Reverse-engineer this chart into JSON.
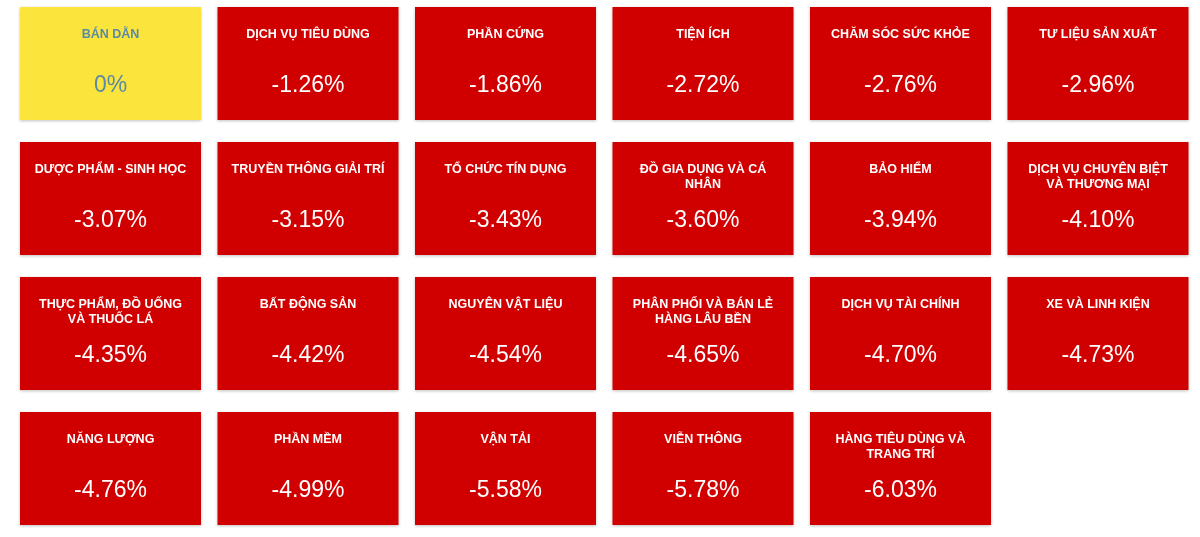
{
  "chart_data": {
    "type": "other",
    "categories": [
      "BÁN DẪN",
      "DỊCH VỤ TIÊU DÙNG",
      "PHẦN CỨNG",
      "TIỆN ÍCH",
      "CHĂM SÓC SỨC KHỎE",
      "TƯ LIỆU SẢN XUẤT",
      "DƯỢC PHẨM - SINH HỌC",
      "TRUYỀN THÔNG GIẢI TRÍ",
      "TỔ CHỨC TÍN DỤNG",
      "ĐỒ GIA DỤNG VÀ CÁ NHÂN",
      "BẢO HIỂM",
      "DỊCH VỤ CHUYÊN BIỆT VÀ THƯƠNG MẠI",
      "THỰC PHẨM, ĐỒ UỐNG VÀ THUỐC LÁ",
      "BẤT ĐỘNG SẢN",
      "NGUYÊN VẬT LIỆU",
      "PHÂN PHỐI VÀ BÁN LẺ HÀNG LÂU BỀN",
      "DỊCH VỤ TÀI CHÍNH",
      "XE VÀ LINH KIỆN",
      "NĂNG LƯỢNG",
      "PHẦN MỀM",
      "VẬN TẢI",
      "VIỄN THÔNG",
      "HÀNG TIÊU DÙNG VÀ TRANG TRÍ"
    ],
    "values": [
      0,
      -1.26,
      -1.86,
      -2.72,
      -2.76,
      -2.96,
      -3.07,
      -3.15,
      -3.43,
      -3.6,
      -3.94,
      -4.1,
      -4.35,
      -4.42,
      -4.54,
      -4.65,
      -4.7,
      -4.73,
      -4.76,
      -4.99,
      -5.58,
      -5.78,
      -6.03
    ],
    "value_labels": [
      "0%",
      "-1.26%",
      "-1.86%",
      "-2.72%",
      "-2.76%",
      "-2.96%",
      "-3.07%",
      "-3.15%",
      "-3.43%",
      "-3.60%",
      "-3.94%",
      "-4.10%",
      "-4.35%",
      "-4.42%",
      "-4.54%",
      "-4.65%",
      "-4.70%",
      "-4.73%",
      "-4.76%",
      "-4.99%",
      "-5.58%",
      "-5.78%",
      "-6.03%"
    ]
  }
}
